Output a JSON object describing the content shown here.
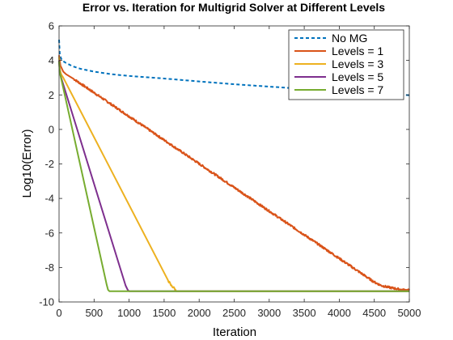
{
  "chart_data": {
    "type": "line",
    "title": "Error vs. Iteration for Multigrid Solver at Different Levels",
    "xlabel": "Iteration",
    "ylabel": "Log10(Error)",
    "xlim": [
      0,
      5000
    ],
    "ylim": [
      -10,
      6
    ],
    "xticks": [
      0,
      500,
      1000,
      1500,
      2000,
      2500,
      3000,
      3500,
      4000,
      4500,
      5000
    ],
    "yticks": [
      -10,
      -8,
      -6,
      -4,
      -2,
      0,
      2,
      4,
      6
    ],
    "grid": false,
    "legend_position": "top-right",
    "series": [
      {
        "name": "No MG",
        "color": "#0072BD",
        "style": "dashed",
        "x": [
          0,
          10,
          30,
          60,
          100,
          200,
          300,
          500,
          750,
          1000,
          1500,
          2000,
          2500,
          3000,
          3500,
          4000,
          4500,
          5000
        ],
        "y": [
          5.2,
          4.4,
          4.1,
          3.95,
          3.85,
          3.65,
          3.52,
          3.35,
          3.2,
          3.1,
          2.95,
          2.78,
          2.62,
          2.48,
          2.35,
          2.22,
          2.1,
          1.98
        ]
      },
      {
        "name": "Levels = 1",
        "color": "#D95319",
        "style": "solid",
        "x": [
          0,
          20,
          60,
          100,
          200,
          4500,
          4600,
          4700,
          4800,
          4900,
          5000
        ],
        "y": [
          4.3,
          3.7,
          3.35,
          3.2,
          2.95,
          -8.85,
          -9.05,
          -9.15,
          -9.22,
          -9.3,
          -9.32
        ],
        "noise_x_range": [
          4450,
          5000
        ]
      },
      {
        "name": "Levels = 3",
        "color": "#EDB120",
        "style": "solid",
        "x": [
          0,
          10,
          30,
          60,
          1550,
          1600,
          1650,
          1670,
          5000
        ],
        "y": [
          4.2,
          3.5,
          3.2,
          3.0,
          -8.7,
          -9.05,
          -9.22,
          -9.38,
          -9.38
        ],
        "noise_x_range": [
          1580,
          1670
        ]
      },
      {
        "name": "Levels = 5",
        "color": "#7E2F8E",
        "style": "solid",
        "x": [
          0,
          10,
          30,
          950,
          980,
          1000,
          1010,
          5000
        ],
        "y": [
          4.0,
          3.3,
          3.0,
          -9.05,
          -9.3,
          -9.38,
          -9.38,
          -9.38
        ]
      },
      {
        "name": "Levels = 7",
        "color": "#77AC30",
        "style": "solid",
        "x": [
          0,
          10,
          30,
          680,
          700,
          720,
          5000
        ],
        "y": [
          3.95,
          3.3,
          2.95,
          -9.0,
          -9.3,
          -9.38,
          -9.38
        ]
      }
    ]
  }
}
